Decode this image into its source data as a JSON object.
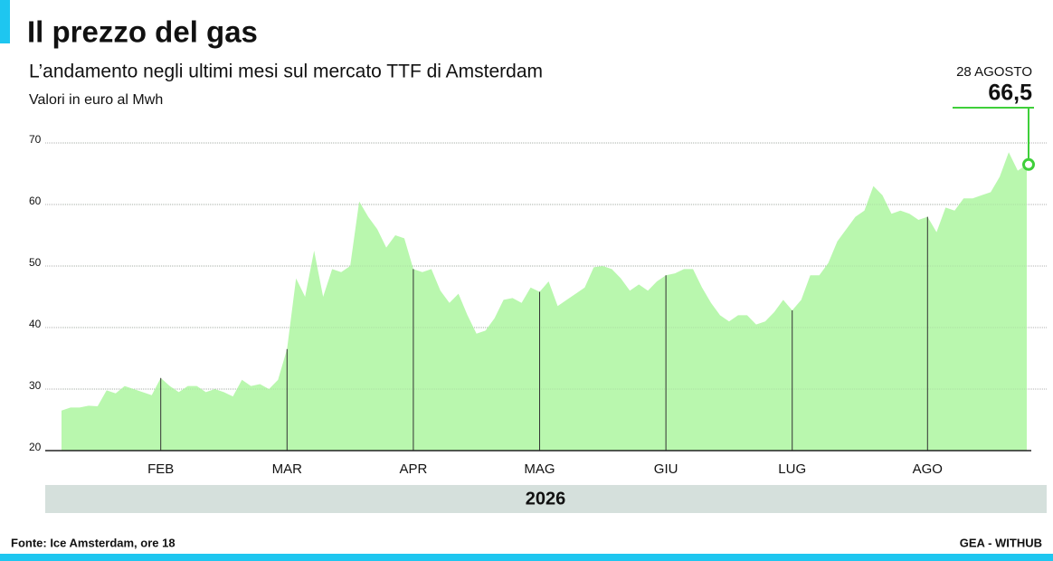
{
  "chart_data": {
    "type": "area",
    "title": "Il prezzo del gas",
    "subtitle": "L’andamento negli ultimi mesi sul mercato TTF di Amsterdam",
    "y_label": "Valori in euro al Mwh",
    "year": "2026",
    "source": "Fonte: Ice Amsterdam, ore 18",
    "credit": "GEA - WITHUB",
    "annotation": {
      "text": "28 AGOSTO",
      "value_label": "66,5"
    },
    "color": "#b9f7ae",
    "accent_color": "#3fcf3a",
    "grid": true,
    "ylim": [
      20,
      70
    ],
    "yticks": [
      20,
      30,
      40,
      50,
      60,
      70
    ],
    "categories": [
      null,
      null,
      null,
      null,
      null,
      null,
      null,
      null,
      null,
      null,
      null,
      "FEB",
      null,
      null,
      null,
      null,
      null,
      null,
      null,
      null,
      null,
      null,
      null,
      null,
      null,
      "MAR",
      null,
      null,
      null,
      null,
      null,
      null,
      null,
      null,
      null,
      null,
      null,
      null,
      null,
      "APR",
      null,
      null,
      null,
      null,
      null,
      null,
      null,
      null,
      null,
      null,
      null,
      null,
      null,
      "MAG",
      null,
      null,
      null,
      null,
      null,
      null,
      null,
      null,
      null,
      null,
      null,
      null,
      null,
      "GIU",
      null,
      null,
      null,
      null,
      null,
      null,
      null,
      null,
      null,
      null,
      null,
      null,
      null,
      "LUG",
      null,
      null,
      null,
      null,
      null,
      null,
      null,
      null,
      null,
      null,
      null,
      null,
      null,
      null,
      "AGO",
      null,
      null,
      null,
      null,
      null,
      null,
      null,
      null,
      null,
      null,
      null
    ],
    "values": [
      26.5,
      27,
      27,
      27.3,
      27.2,
      29.8,
      29.3,
      30.5,
      30,
      29.5,
      29,
      31.8,
      30.5,
      29.5,
      30.5,
      30.5,
      29.5,
      30,
      29.5,
      28.8,
      31.5,
      30.5,
      30.8,
      30,
      31.5,
      36.5,
      48,
      45,
      52.5,
      45,
      49.5,
      49,
      50,
      60.5,
      58,
      56,
      53,
      55,
      54.5,
      49.5,
      49,
      49.5,
      46,
      44,
      45.5,
      42,
      39,
      39.5,
      41.5,
      44.5,
      44.8,
      44,
      46.5,
      45.8,
      47.5,
      43.5,
      44.5,
      45.5,
      46.5,
      49.8,
      50,
      49.5,
      48,
      46,
      47,
      46,
      47.5,
      48.5,
      48.8,
      49.5,
      49.5,
      46.5,
      44,
      42,
      41,
      42,
      42,
      40.5,
      41,
      42.5,
      44.5,
      42.8,
      44.5,
      48.5,
      48.5,
      50.5,
      54,
      56,
      58,
      59,
      63,
      61.5,
      58.5,
      59,
      58.5,
      57.5,
      58,
      55.5,
      59.5,
      59,
      61,
      61,
      61.5,
      62,
      64.5,
      68.5,
      65.5,
      66.5
    ]
  }
}
